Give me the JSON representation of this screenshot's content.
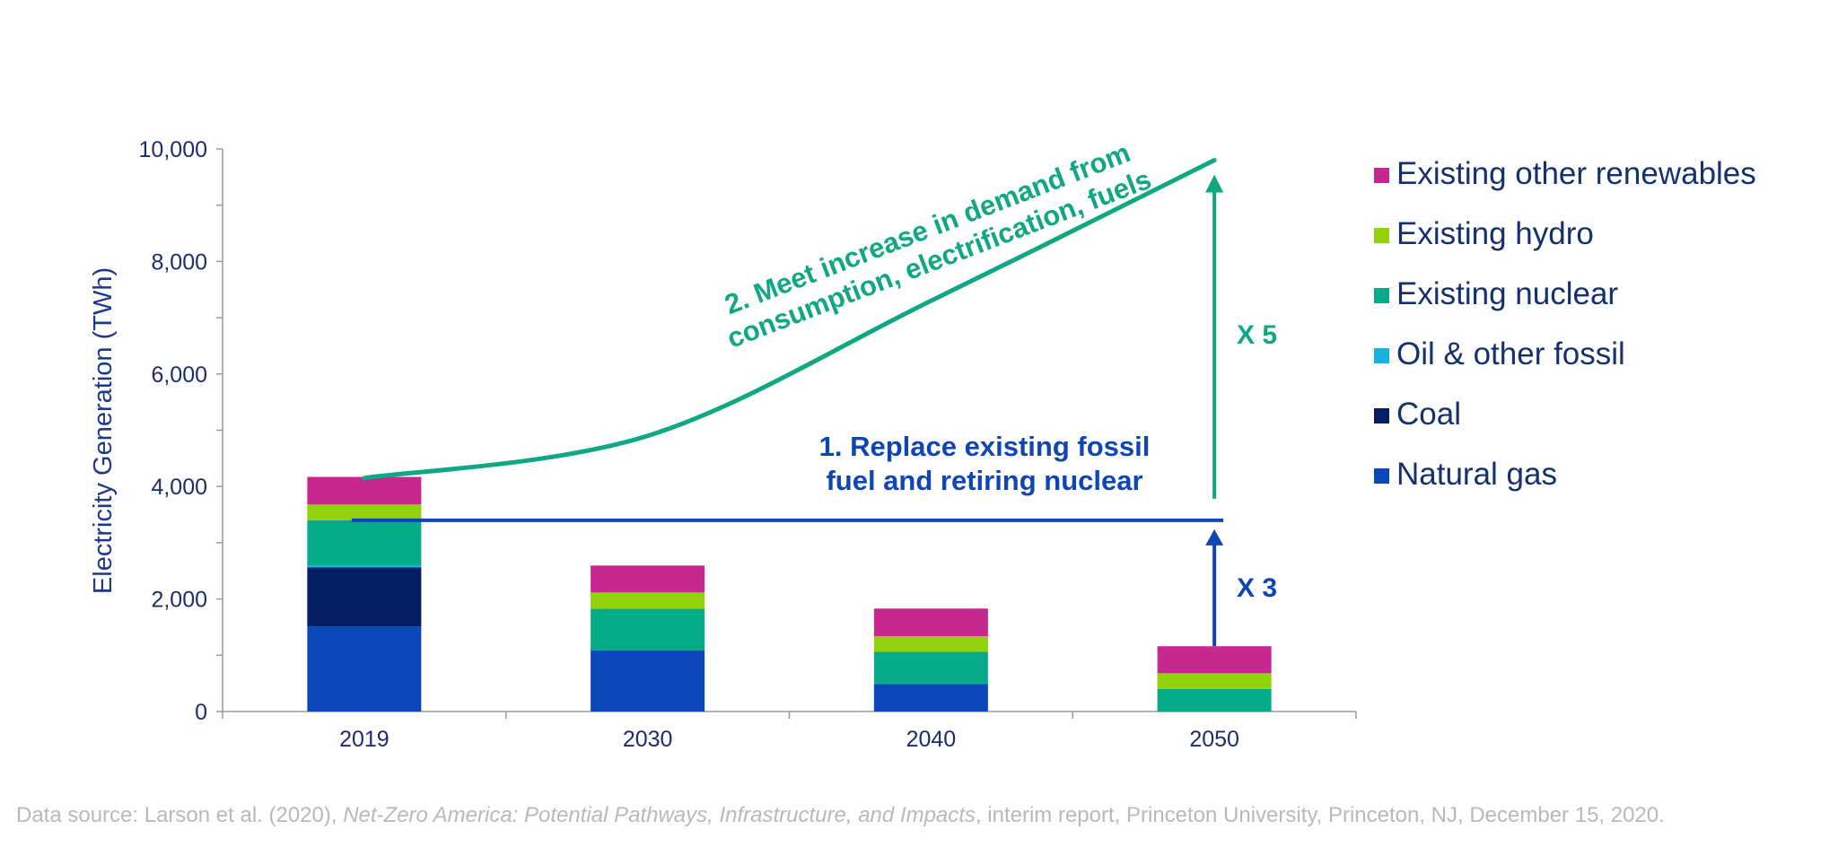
{
  "chart_data": {
    "type": "bar",
    "stacked": true,
    "categories": [
      "2019",
      "2030",
      "2040",
      "2050"
    ],
    "ylabel": "Electricity Generation (TWh)",
    "ylim": [
      0,
      10000
    ],
    "yticks": [
      "0",
      "2,000",
      "4,000",
      "6,000",
      "8,000",
      "10,000"
    ],
    "ytick_values": [
      0,
      2000,
      4000,
      6000,
      8000,
      10000
    ],
    "grid": false,
    "legend_position": "right",
    "series": [
      {
        "name": "Natural gas",
        "color": "#0a47bb",
        "values": [
          1510,
          1085,
          490,
          0
        ]
      },
      {
        "name": "Coal",
        "color": "#031e62",
        "values": [
          1050,
          0,
          0,
          0
        ]
      },
      {
        "name": "Oil & other fossil",
        "color": "#19b2dc",
        "values": [
          40,
          0,
          0,
          0
        ]
      },
      {
        "name": "Existing nuclear",
        "color": "#05aa89",
        "values": [
          800,
          740,
          570,
          400
        ]
      },
      {
        "name": "Existing hydro",
        "color": "#92d20b",
        "values": [
          280,
          290,
          280,
          280
        ]
      },
      {
        "name": "Existing other renewables",
        "color": "#c6288f",
        "values": [
          490,
          480,
          490,
          480
        ]
      }
    ],
    "annotations": {
      "replace_line": {
        "value": 3400,
        "color": "#0f45b4",
        "text_line1": "1. Replace existing fossil",
        "text_line2": "fuel and retiring nuclear"
      },
      "demand_curve": {
        "values": [
          4150,
          4900,
          7300,
          9800
        ],
        "color": "#10a884",
        "text_line1": "2. Meet increase in demand from",
        "text_line2": "consumption, electrification, fuels"
      },
      "multiplier_3": "X 3",
      "multiplier_5": "X 5"
    }
  },
  "footnote": {
    "prefix": "Data source: Larson et al. (2020), ",
    "title": "Net-Zero America: Potential Pathways, Infrastructure, and Impacts",
    "suffix": ", interim report, Princeton University, Princeton, NJ, December 15, 2020."
  }
}
